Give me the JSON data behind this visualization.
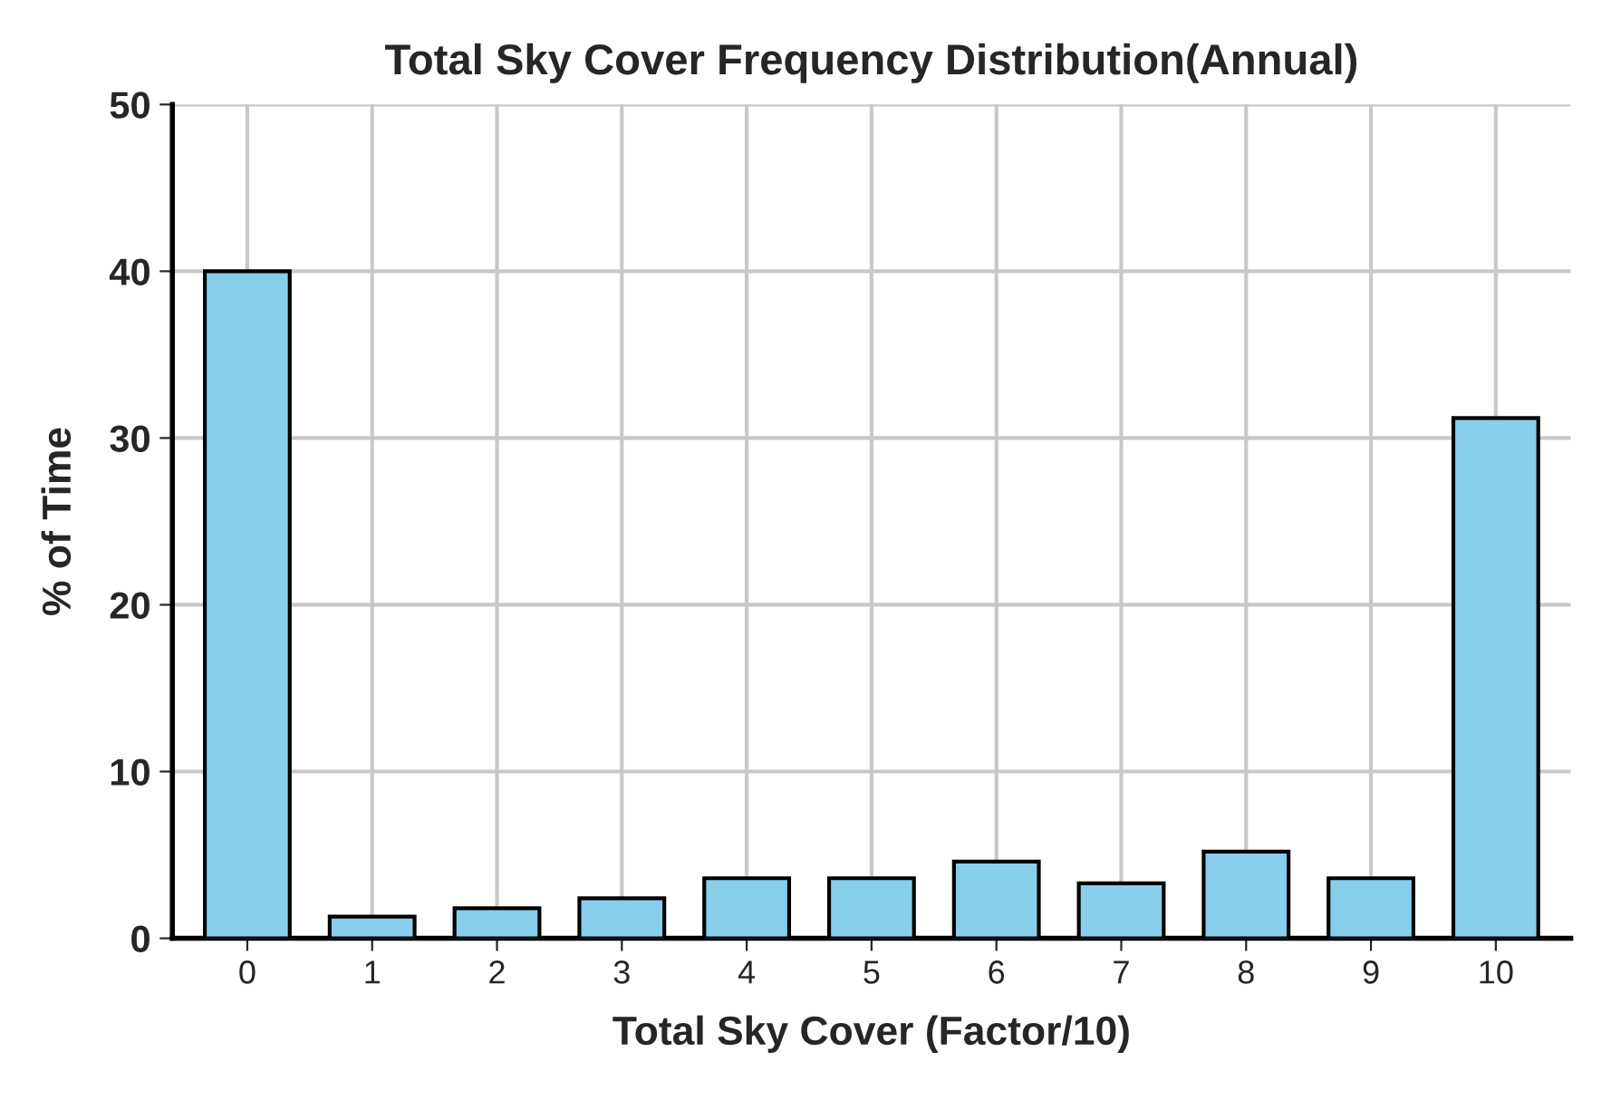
{
  "chart_data": {
    "type": "bar",
    "title": "Total Sky Cover Frequency Distribution(Annual)",
    "xlabel": "Total Sky Cover (Factor/10)",
    "ylabel": "% of Time",
    "categories": [
      "0",
      "1",
      "2",
      "3",
      "4",
      "5",
      "6",
      "7",
      "8",
      "9",
      "10"
    ],
    "values": [
      40.0,
      1.3,
      1.8,
      2.4,
      3.6,
      3.6,
      4.6,
      3.3,
      5.2,
      3.6,
      31.2
    ],
    "color": "#87ceeb",
    "ylim": [
      0,
      50
    ],
    "yticks": [
      0,
      10,
      20,
      30,
      40,
      50
    ],
    "grid": true,
    "legend": false
  }
}
